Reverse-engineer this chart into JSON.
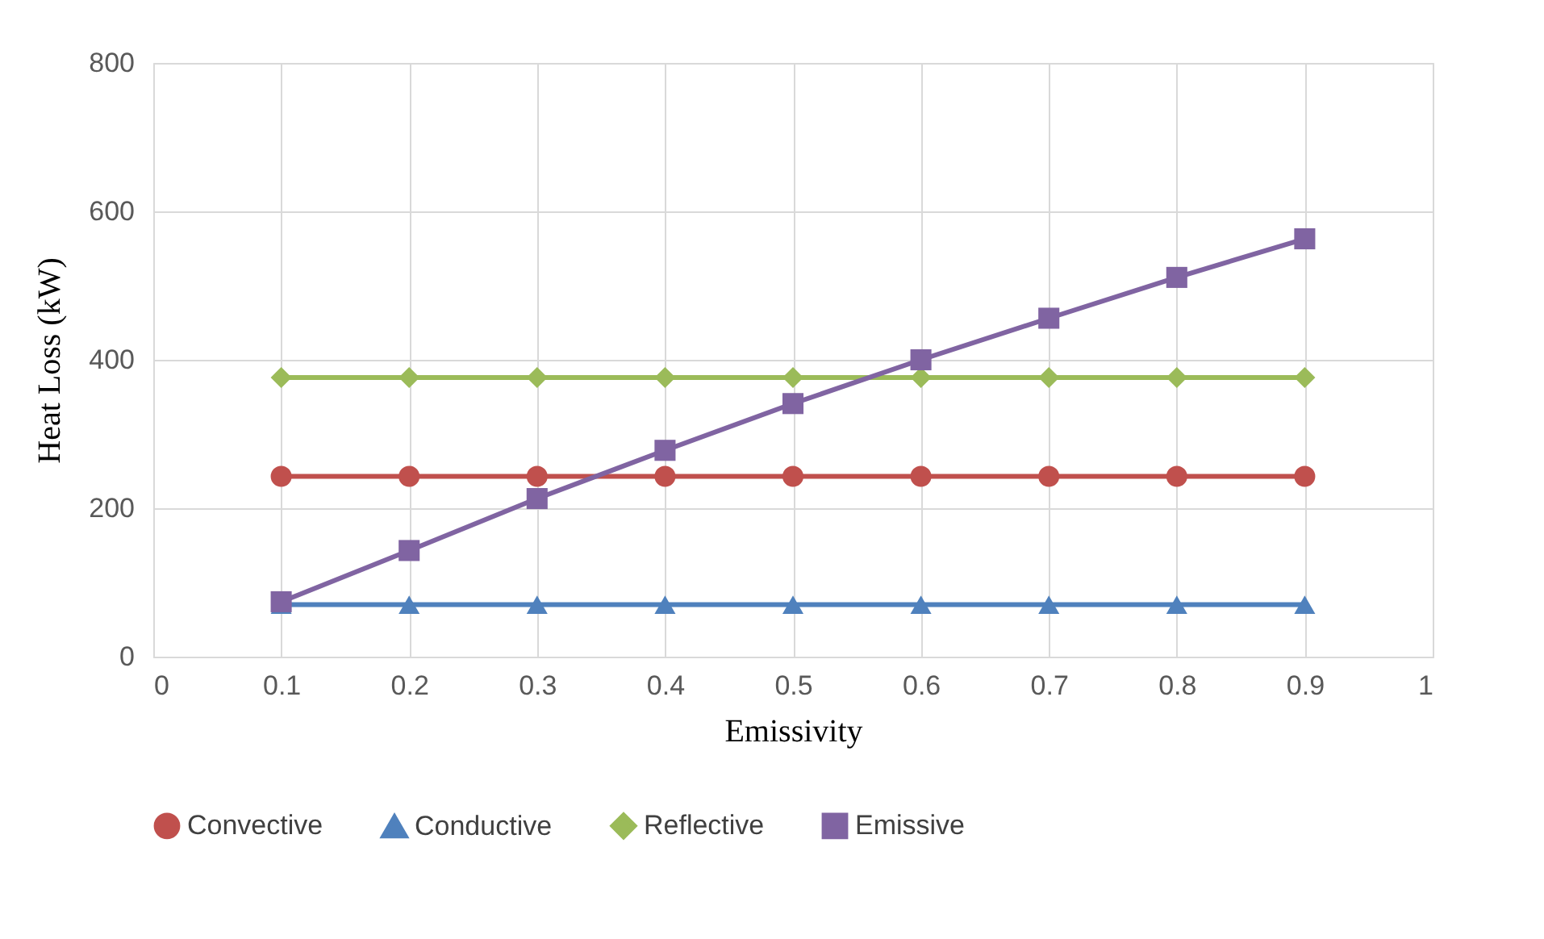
{
  "chart_data": {
    "type": "line",
    "xlabel": "Emissivity",
    "ylabel": "Heat Loss (kW)",
    "x": [
      0.1,
      0.2,
      0.3,
      0.4,
      0.5,
      0.6,
      0.7,
      0.8,
      0.9
    ],
    "series": [
      {
        "name": "Convective",
        "color": "#c0504d",
        "marker": "circle",
        "values": [
          243,
          243,
          243,
          243,
          243,
          243,
          243,
          243,
          243
        ]
      },
      {
        "name": "Conductive",
        "color": "#4f81bd",
        "marker": "triangle",
        "values": [
          70,
          70,
          70,
          70,
          70,
          70,
          70,
          70,
          70
        ]
      },
      {
        "name": "Reflective",
        "color": "#9bbb59",
        "marker": "diamond",
        "values": [
          376,
          376,
          376,
          376,
          376,
          376,
          376,
          376,
          376
        ]
      },
      {
        "name": "Emissive",
        "color": "#8064a2",
        "marker": "square",
        "values": [
          74,
          143,
          213,
          278,
          341,
          400,
          456,
          511,
          563
        ]
      }
    ],
    "xlim": [
      0,
      1
    ],
    "xticks": [
      0,
      0.1,
      0.2,
      0.3,
      0.4,
      0.5,
      0.6,
      0.7,
      0.8,
      0.9,
      1
    ],
    "ylim": [
      0,
      800
    ],
    "yticks": [
      0,
      200,
      400,
      600,
      800
    ],
    "grid": true,
    "legend": "bottom",
    "line_style": "solid"
  }
}
